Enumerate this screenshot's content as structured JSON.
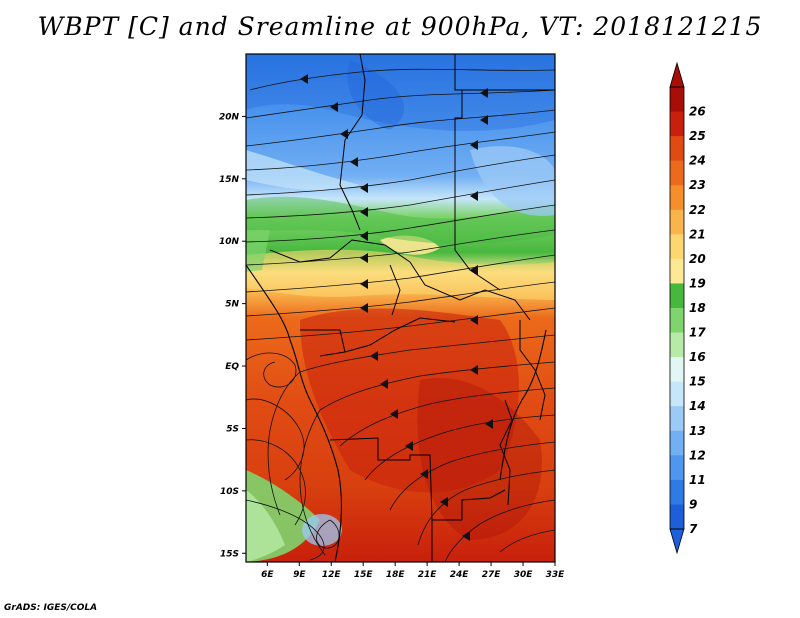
{
  "title": "WBPT [C] and Sreamline at 900hPa, VT: 2018121215",
  "footer": "GrADS: IGES/COLA",
  "map": {
    "lon_ticks": [
      "6E",
      "9E",
      "12E",
      "15E",
      "18E",
      "21E",
      "24E",
      "27E",
      "30E",
      "33E"
    ],
    "lat_ticks": [
      "20N",
      "15N",
      "10N",
      "5N",
      "EQ",
      "5S",
      "10S",
      "15S"
    ],
    "lon_range": [
      4,
      33
    ],
    "lat_range": [
      -15.7,
      25
    ],
    "variable": "Wet-bulb potential temperature",
    "units": "C",
    "level": "900hPa",
    "valid_time": "2018121215"
  },
  "colorbar": {
    "labels": [
      "7",
      "9",
      "11",
      "12",
      "13",
      "14",
      "15",
      "16",
      "17",
      "18",
      "19",
      "20",
      "21",
      "22",
      "23",
      "24",
      "25",
      "26"
    ],
    "colors": [
      "#1c5fd8",
      "#2f7be6",
      "#4f97ee",
      "#72aff3",
      "#9ccaf6",
      "#c6e6fa",
      "#e2f6f4",
      "#b6eaa6",
      "#7fd46e",
      "#47b83e",
      "#fde995",
      "#fcd66f",
      "#f9b44d",
      "#f48f2b",
      "#ec6a1b",
      "#e04a13",
      "#c8200c",
      "#a70e08"
    ]
  }
}
